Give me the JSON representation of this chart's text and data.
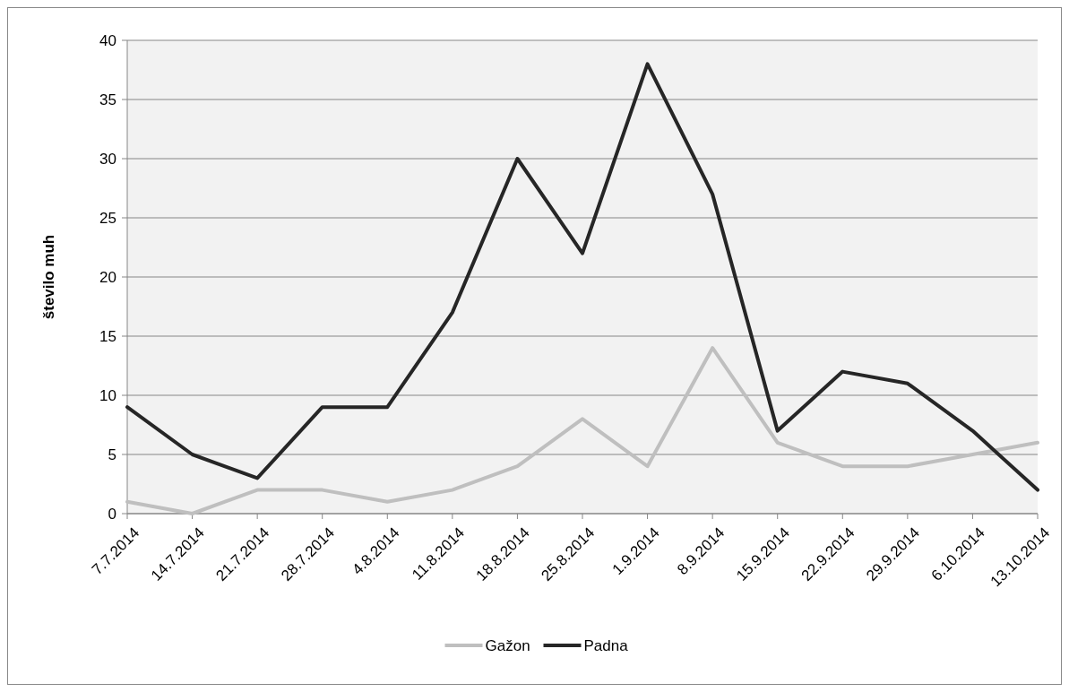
{
  "chart_data": {
    "type": "line",
    "ylabel": "število muh",
    "categories": [
      "7.7.2014",
      "14.7.2014",
      "21.7.2014",
      "28.7.2014",
      "4.8.2014",
      "11.8.2014",
      "18.8.2014",
      "25.8.2014",
      "1.9.2014",
      "8.9.2014",
      "15.9.2014",
      "22.9.2014",
      "29.9.2014",
      "6.10.2014",
      "13.10.2014"
    ],
    "series": [
      {
        "name": "Gažon",
        "color": "#bfbfbf",
        "values": [
          1,
          0,
          2,
          2,
          1,
          2,
          4,
          8,
          4,
          14,
          6,
          4,
          4,
          5,
          6
        ]
      },
      {
        "name": "Padna",
        "color": "#262626",
        "values": [
          9,
          5,
          3,
          9,
          9,
          17,
          30,
          22,
          38,
          27,
          7,
          12,
          11,
          7,
          2
        ]
      }
    ],
    "ylim": [
      0,
      40
    ],
    "yticks": [
      0,
      5,
      10,
      15,
      20,
      25,
      30,
      35,
      40
    ],
    "grid": "y",
    "legend": "bottom",
    "marker": "none",
    "line_style": "solid"
  }
}
